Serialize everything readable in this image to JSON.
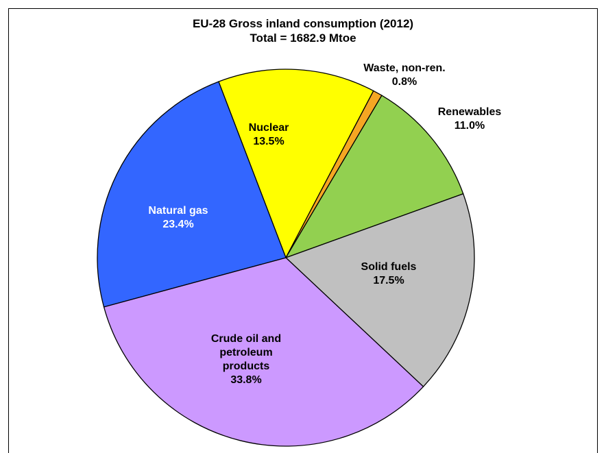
{
  "chart_data": {
    "type": "pie",
    "title": "EU-28 Gross inland consumption (2012)",
    "subtitle": "Total = 1682.9 Mtoe",
    "categories": [
      "Nuclear",
      "Waste, non-ren.",
      "Renewables",
      "Solid fuels",
      "Crude oil and petroleum products",
      "Natural gas"
    ],
    "values": [
      13.5,
      0.8,
      11.0,
      17.5,
      33.8,
      23.4
    ],
    "value_labels": [
      "13.5%",
      "0.8%",
      "11.0%",
      "17.5%",
      "33.8%",
      "23.4%"
    ],
    "colors": [
      "#ffff00",
      "#f5a623",
      "#92d050",
      "#c0c0c0",
      "#cc99ff",
      "#3366ff"
    ]
  }
}
